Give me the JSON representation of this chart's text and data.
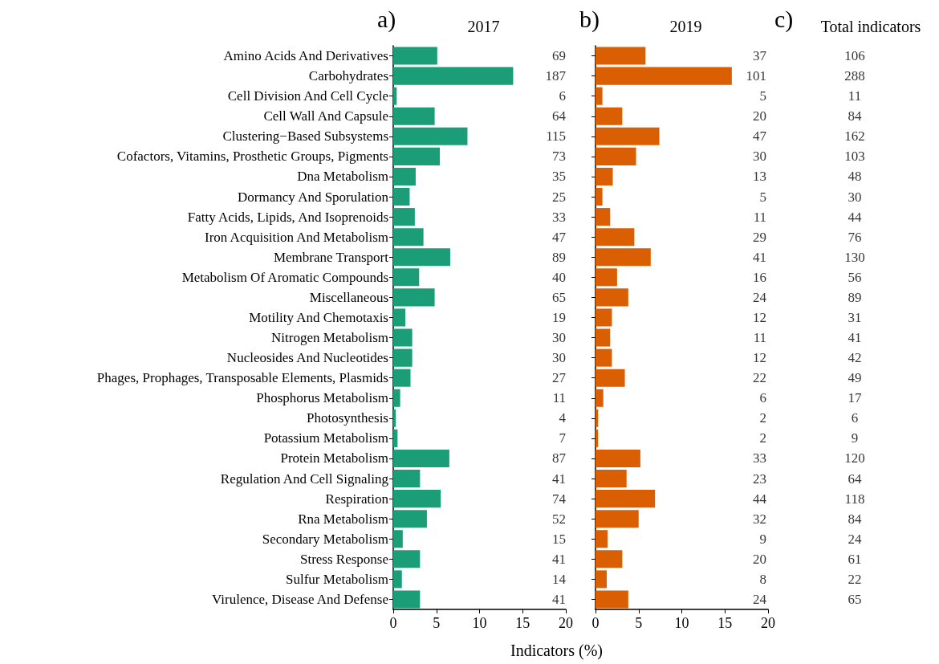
{
  "chart_data": [
    {
      "type": "bar",
      "orientation": "horizontal",
      "title": "2017",
      "annotations": [
        "a)"
      ],
      "xlabel": "Indicators (%)",
      "categories": [
        "Amino Acids And Derivatives",
        "Carbohydrates",
        "Cell Division And Cell Cycle",
        "Cell Wall And Capsule",
        "Clustering−Based Subsystems",
        "Cofactors, Vitamins, Prosthetic Groups, Pigments",
        "Dna Metabolism",
        "Dormancy And Sporulation",
        "Fatty Acids, Lipids, And Isoprenoids",
        "Iron Acquisition And Metabolism",
        "Membrane Transport",
        "Metabolism Of Aromatic Compounds",
        "Miscellaneous",
        "Motility And Chemotaxis",
        "Nitrogen Metabolism",
        "Nucleosides And Nucleotides",
        "Phages, Prophages, Transposable Elements, Plasmids",
        "Phosphorus Metabolism",
        "Photosynthesis",
        "Potassium Metabolism",
        "Protein Metabolism",
        "Regulation And Cell Signaling",
        "Respiration",
        "Rna Metabolism",
        "Secondary Metabolism",
        "Stress Response",
        "Sulfur Metabolism",
        "Virulence, Disease And Defense"
      ],
      "series": [
        {
          "color": "#1b9e77",
          "values": [
            5.1,
            13.9,
            0.4,
            4.8,
            8.6,
            5.4,
            2.6,
            1.9,
            2.5,
            3.5,
            6.6,
            3.0,
            4.8,
            1.4,
            2.2,
            2.2,
            2.0,
            0.8,
            0.3,
            0.5,
            6.5,
            3.1,
            5.5,
            3.9,
            1.1,
            3.1,
            1.0,
            3.1
          ]
        }
      ],
      "xlim": [
        0,
        20
      ],
      "xticks": [
        0,
        5,
        10,
        15,
        20
      ]
    },
    {
      "type": "other",
      "data_labels": true,
      "values": [
        69,
        187,
        6,
        64,
        115,
        73,
        35,
        25,
        33,
        47,
        89,
        40,
        65,
        19,
        30,
        30,
        27,
        11,
        4,
        7,
        87,
        41,
        74,
        52,
        15,
        41,
        14,
        41
      ]
    },
    {
      "type": "bar",
      "orientation": "horizontal",
      "title": "2019",
      "annotations": [
        "b)"
      ],
      "categories": [
        null,
        null,
        null,
        null,
        null,
        null,
        null,
        null,
        null,
        null,
        null,
        null,
        null,
        null,
        null,
        null,
        null,
        null,
        null,
        null,
        null,
        null,
        null,
        null,
        null,
        null,
        null,
        null
      ],
      "series": [
        {
          "color": "#d95f02",
          "values": [
            5.8,
            15.8,
            0.8,
            3.1,
            7.4,
            4.7,
            2.0,
            0.8,
            1.7,
            4.5,
            6.4,
            2.5,
            3.8,
            1.9,
            1.7,
            1.9,
            3.4,
            0.9,
            0.3,
            0.3,
            5.2,
            3.6,
            6.9,
            5.0,
            1.4,
            3.1,
            1.3,
            3.8
          ]
        }
      ],
      "xlim": [
        0,
        20
      ],
      "xticks": [
        0,
        5,
        10,
        15,
        20
      ]
    },
    {
      "type": "other",
      "data_labels": true,
      "values": [
        37,
        101,
        5,
        20,
        47,
        30,
        13,
        5,
        11,
        29,
        41,
        16,
        24,
        12,
        11,
        12,
        22,
        6,
        2,
        2,
        33,
        23,
        44,
        32,
        9,
        20,
        8,
        24
      ]
    },
    {
      "type": "other",
      "title": "Total indicators",
      "annotations": [
        "c)"
      ],
      "data_labels": true,
      "values": [
        106,
        288,
        11,
        84,
        162,
        103,
        48,
        30,
        44,
        76,
        130,
        56,
        89,
        31,
        41,
        42,
        49,
        17,
        6,
        9,
        120,
        64,
        118,
        84,
        24,
        61,
        22,
        65
      ]
    }
  ]
}
